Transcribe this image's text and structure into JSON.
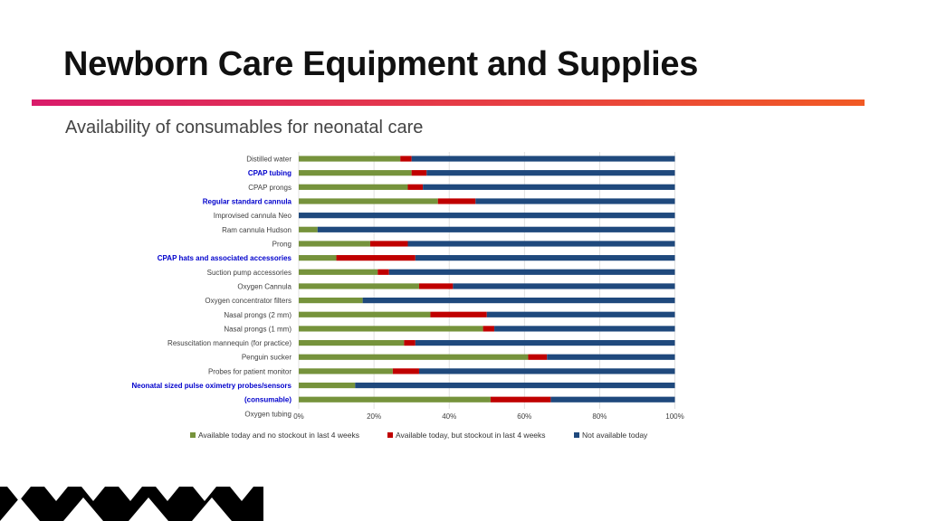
{
  "page": {
    "title": "Newborn Care Equipment and Supplies",
    "subtitle": "Availability of consumables for neonatal care"
  },
  "colors": {
    "available": "#76933c",
    "stockout": "#c00000",
    "not_available": "#1f497d",
    "highlight_label": "#0000cc",
    "accent_start": "#d91b6a",
    "accent_end": "#f15a24"
  },
  "chart_data": {
    "type": "bar",
    "orientation": "horizontal",
    "stacked": true,
    "categories": [
      "Distilled water",
      "CPAP tubing",
      "CPAP prongs",
      "Regular standard cannula",
      "Improvised cannula Neo",
      "Ram cannula Hudson",
      "Prong",
      "CPAP hats and associated accessories",
      "Suction pump accessories",
      "Oxygen Cannula",
      "Oxygen concentrator filters",
      "Nasal prongs (2 mm)",
      "Nasal prongs (1 mm)",
      "Resuscitation mannequin (for practice)",
      "Penguin sucker",
      "Probes for patient monitor",
      "Neonatal sized pulse oximetry probes/sensors",
      "(consumable)",
      "Oxygen tubing"
    ],
    "highlighted": [
      "CPAP tubing",
      "Regular standard cannula",
      "CPAP hats and associated accessories",
      "Neonatal sized pulse oximetry probes/sensors",
      "(consumable)"
    ],
    "series": [
      {
        "name": "Available today and no stockout in last 4 weeks",
        "values": [
          27,
          30,
          29,
          37,
          0,
          5,
          19,
          10,
          21,
          32,
          17,
          35,
          49,
          28,
          61,
          25,
          15,
          51,
          null
        ]
      },
      {
        "name": "Available today, but stockout in last 4 weeks",
        "values": [
          3,
          4,
          4,
          10,
          0,
          0,
          10,
          21,
          3,
          9,
          0,
          15,
          3,
          3,
          5,
          7,
          0,
          16,
          null
        ]
      },
      {
        "name": "Not available today",
        "values": [
          70,
          66,
          67,
          53,
          100,
          95,
          71,
          69,
          76,
          59,
          83,
          50,
          48,
          69,
          34,
          68,
          85,
          33,
          null
        ]
      }
    ],
    "x_ticks": [
      "0%",
      "20%",
      "40%",
      "60%",
      "80%",
      "100%"
    ],
    "xlim": [
      0,
      100
    ],
    "legend_position": "bottom",
    "grid": true
  }
}
